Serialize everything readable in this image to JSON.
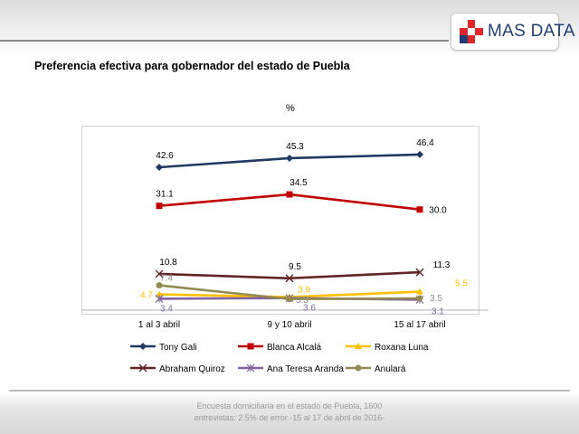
{
  "header": {
    "logo_text": "MAS DATA"
  },
  "title": "Preferencia efectiva para gobernador  del estado de Puebla",
  "unit_label": "%",
  "colors": {
    "logo_red": "#e0262a",
    "logo_blue": "#1f3f74",
    "grid_axis": "#b0b0b0"
  },
  "chart_data": {
    "type": "line",
    "categories": [
      "1 al 3 abril",
      "9 y 10 abril",
      "15 al 17 abril"
    ],
    "ylim": [
      0,
      55
    ],
    "grid": false,
    "legend_position": "bottom",
    "series": [
      {
        "name": "Tony Gali",
        "values": [
          42.6,
          45.3,
          46.4
        ],
        "labels": [
          "42.6",
          "45.3",
          "46.4"
        ],
        "color": "#1f3864",
        "marker": "diamond"
      },
      {
        "name": "Blanca Alcalá",
        "values": [
          31.1,
          34.5,
          30.0
        ],
        "labels": [
          "31.1",
          "34.5",
          "30.0"
        ],
        "color": "#c00000",
        "marker": "square"
      },
      {
        "name": "Roxana Luna",
        "values": [
          4.7,
          3.9,
          5.5
        ],
        "labels": [
          "4.7",
          "3.9",
          "5.5"
        ],
        "color": "#ffc000",
        "marker": "triangle"
      },
      {
        "name": "Abraham Quiroz",
        "values": [
          10.8,
          9.5,
          11.3
        ],
        "labels": [
          "10.8",
          "9.5",
          "11.3"
        ],
        "color": "#632523",
        "marker": "x"
      },
      {
        "name": "Ana Teresa Aranda",
        "values": [
          3.4,
          3.6,
          3.1
        ],
        "labels": [
          "3.4",
          "3.6",
          "3.1"
        ],
        "color": "#8064a2",
        "marker": "star"
      },
      {
        "name": "Anulará",
        "values": [
          7.4,
          3.3,
          3.5
        ],
        "labels": [
          "7.4",
          "3.3",
          "3.5"
        ],
        "color": "#948a54",
        "marker": "circle"
      }
    ]
  },
  "footer": {
    "line1": "Encuesta domiciliaria en el estado de Puebla, 1600",
    "line2": "entrevistas: 2.5% de error  -15 al 17 de abril de 2016-"
  }
}
